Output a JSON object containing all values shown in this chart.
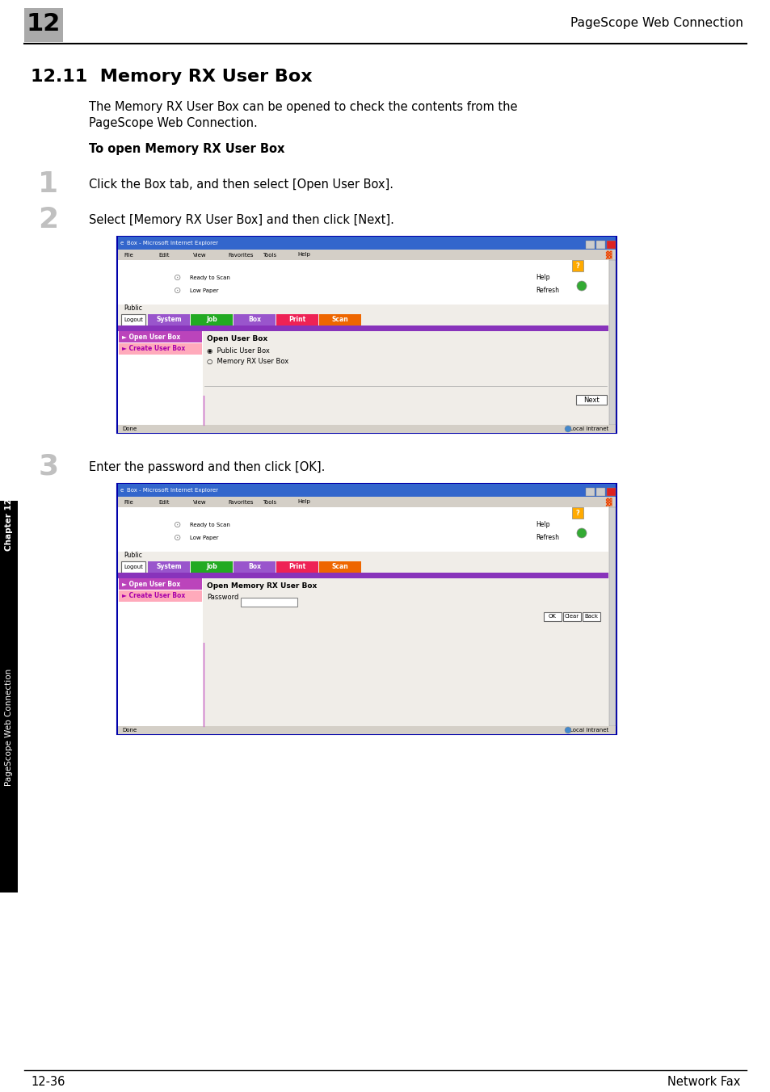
{
  "page_bg": "#ffffff",
  "header_num": "12",
  "header_num_bg": "#aaaaaa",
  "header_title": "PageScope Web Connection",
  "section_title": "12.11  Memory RX User Box",
  "intro_line1": "The Memory RX User Box can be opened to check the contents from the",
  "intro_line2": "PageScope Web Connection.",
  "bold_heading": "To open Memory RX User Box",
  "step1_num": "1",
  "step1_text": "Click the Box tab, and then select [Open User Box].",
  "step2_num": "2",
  "step2_text": "Select [Memory RX User Box] and then click [Next].",
  "step3_num": "3",
  "step3_text": "Enter the password and then click [OK].",
  "footer_left": "12-36",
  "footer_right": "Network Fax",
  "side_label": "PageScope Web Connection",
  "side_chapter": "Chapter 12",
  "titlebar_color": "#3366cc",
  "menubar_color": "#d4cfc7",
  "content_bg": "#f0ede8",
  "nav_purple": "#8833bb",
  "tab_system": "#9955cc",
  "tab_job": "#22aa22",
  "tab_box": "#9955cc",
  "tab_print": "#ee2255",
  "tab_scan": "#ee6600",
  "sidebar_purple": "#bb44bb",
  "sidebar_pink": "#ffaabb",
  "browser_border": "#0000cc",
  "help_icon_color": "#ffaa00"
}
